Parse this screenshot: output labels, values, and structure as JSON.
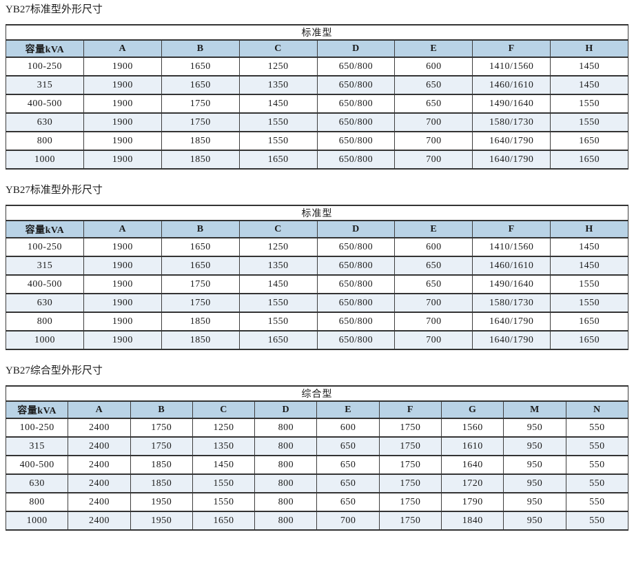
{
  "page_background": "#ffffff",
  "colors": {
    "column_header_bg": "#b9d3e6",
    "row_alt_bg": "#e9f0f7",
    "row_bg": "#ffffff",
    "border": "#3a3a3a",
    "text": "#1b1b1b"
  },
  "sections": [
    {
      "title": "YB27标准型外形尺寸",
      "table": {
        "group_header": "标准型",
        "columns": [
          "容量kVA",
          "A",
          "B",
          "C",
          "D",
          "E",
          "F",
          "H"
        ],
        "rows": [
          [
            "100-250",
            "1900",
            "1650",
            "1250",
            "650/800",
            "600",
            "1410/1560",
            "1450"
          ],
          [
            "315",
            "1900",
            "1650",
            "1350",
            "650/800",
            "650",
            "1460/1610",
            "1450"
          ],
          [
            "400-500",
            "1900",
            "1750",
            "1450",
            "650/800",
            "650",
            "1490/1640",
            "1550"
          ],
          [
            "630",
            "1900",
            "1750",
            "1550",
            "650/800",
            "700",
            "1580/1730",
            "1550"
          ],
          [
            "800",
            "1900",
            "1850",
            "1550",
            "650/800",
            "700",
            "1640/1790",
            "1650"
          ],
          [
            "1000",
            "1900",
            "1850",
            "1650",
            "650/800",
            "700",
            "1640/1790",
            "1650"
          ]
        ]
      }
    },
    {
      "title": "YB27标准型外形尺寸",
      "table": {
        "group_header": "标准型",
        "columns": [
          "容量kVA",
          "A",
          "B",
          "C",
          "D",
          "E",
          "F",
          "H"
        ],
        "rows": [
          [
            "100-250",
            "1900",
            "1650",
            "1250",
            "650/800",
            "600",
            "1410/1560",
            "1450"
          ],
          [
            "315",
            "1900",
            "1650",
            "1350",
            "650/800",
            "650",
            "1460/1610",
            "1450"
          ],
          [
            "400-500",
            "1900",
            "1750",
            "1450",
            "650/800",
            "650",
            "1490/1640",
            "1550"
          ],
          [
            "630",
            "1900",
            "1750",
            "1550",
            "650/800",
            "700",
            "1580/1730",
            "1550"
          ],
          [
            "800",
            "1900",
            "1850",
            "1550",
            "650/800",
            "700",
            "1640/1790",
            "1650"
          ],
          [
            "1000",
            "1900",
            "1850",
            "1650",
            "650/800",
            "700",
            "1640/1790",
            "1650"
          ]
        ]
      }
    },
    {
      "title": "YB27综合型外形尺寸",
      "table": {
        "group_header": "综合型",
        "columns": [
          "容量kVA",
          "A",
          "B",
          "C",
          "D",
          "E",
          "F",
          "G",
          "M",
          "N"
        ],
        "rows": [
          [
            "100-250",
            "2400",
            "1750",
            "1250",
            "800",
            "600",
            "1750",
            "1560",
            "950",
            "550"
          ],
          [
            "315",
            "2400",
            "1750",
            "1350",
            "800",
            "650",
            "1750",
            "1610",
            "950",
            "550"
          ],
          [
            "400-500",
            "2400",
            "1850",
            "1450",
            "800",
            "650",
            "1750",
            "1640",
            "950",
            "550"
          ],
          [
            "630",
            "2400",
            "1850",
            "1550",
            "800",
            "650",
            "1750",
            "1720",
            "950",
            "550"
          ],
          [
            "800",
            "2400",
            "1950",
            "1550",
            "800",
            "650",
            "1750",
            "1790",
            "950",
            "550"
          ],
          [
            "1000",
            "2400",
            "1950",
            "1650",
            "800",
            "700",
            "1750",
            "1840",
            "950",
            "550"
          ]
        ]
      }
    }
  ]
}
